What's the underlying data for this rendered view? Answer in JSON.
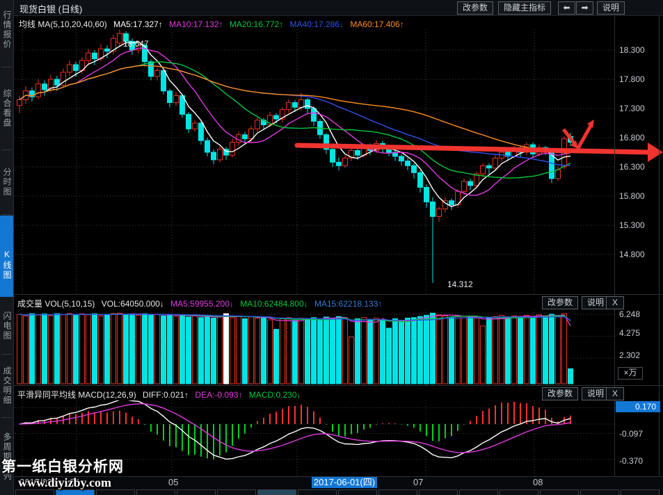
{
  "window": {
    "title": "现货白银 (日线)",
    "buttons": {
      "change_params": "改参数",
      "hide_indicator": "隐藏主指标",
      "prev": "⬅",
      "next": "➡",
      "help": "说明"
    }
  },
  "sidebar": {
    "items": [
      {
        "label": "行情报价",
        "active": false
      },
      {
        "label": "综合看盘",
        "active": false
      },
      {
        "label": "分时图",
        "active": false
      },
      {
        "label": "K线图",
        "active": true
      },
      {
        "label": "闪电图",
        "active": false
      },
      {
        "label": "成交明细",
        "active": false
      },
      {
        "label": "多周期同列",
        "active": false
      }
    ]
  },
  "ma_header": {
    "prefix": "均线 MA(5,10,20,40,60)",
    "values": [
      {
        "text": "MA5:17.327↑"
      },
      {
        "text": "MA10:17.132↑"
      },
      {
        "text": "MA20:16.772↑"
      },
      {
        "text": "MA40:17.286↓"
      },
      {
        "text": "MA60:17.406↑"
      }
    ]
  },
  "volume_pane": {
    "prefix": "成交量 VOL(5,10,15)",
    "vol_value": "VOL:64050.000↓",
    "ma_values": [
      {
        "text": "MA5:59955.200↓"
      },
      {
        "text": "MA10:62484.800↓"
      },
      {
        "text": "MA15:62218.133↑"
      }
    ],
    "buttons": {
      "change_params": "改参数",
      "help": "说明",
      "close": "X"
    },
    "unit": "×万"
  },
  "macd_pane": {
    "prefix": "平滑异同平均线 MACD(12,26,9)",
    "values": [
      {
        "text": "DIFF:0.021↑"
      },
      {
        "text": "DEA:-0.093↑"
      },
      {
        "text": "MACD:0.230↓"
      }
    ],
    "buttons": {
      "change_params": "改参数",
      "help": "说明",
      "close": "X"
    }
  },
  "time_axis": {
    "labels": [
      "2017/03",
      "04",
      "05",
      "07",
      "08"
    ],
    "highlight": "2017-06-01(四)"
  },
  "watermark": {
    "line1": "第一纸白银分析网",
    "line2": "www.diyizby.com"
  },
  "colors": {
    "up": "#ee3224",
    "down": "#00e4e4",
    "white_bar": "#ffffff",
    "ma5": "#ffffff",
    "ma10": "#e33ae3",
    "ma20": "#00c83c",
    "ma40": "#3050f0",
    "ma60": "#ff8c1e",
    "hist_pos": "#ff3030",
    "hist_neg": "#00d020",
    "accent": "#1377d4",
    "annotation": "#f23430",
    "grid": "#3a3f46"
  },
  "chart_data": {
    "type": "candlestick",
    "title": "现货白银 (日线)",
    "price_axis_labels": [
      "18.300",
      "17.800",
      "17.300",
      "16.800",
      "16.300",
      "15.800",
      "15.300",
      "14.800"
    ],
    "price_ylim": [
      14.25,
      18.66
    ],
    "peak_label": "18.647",
    "trough_label": "14.312",
    "ohlc": [
      [
        17.35,
        17.52,
        17.22,
        17.45
      ],
      [
        17.45,
        17.68,
        17.38,
        17.6
      ],
      [
        17.6,
        17.66,
        17.42,
        17.5
      ],
      [
        17.5,
        17.8,
        17.46,
        17.72
      ],
      [
        17.72,
        17.78,
        17.52,
        17.62
      ],
      [
        17.62,
        17.88,
        17.58,
        17.8
      ],
      [
        17.8,
        17.86,
        17.6,
        17.7
      ],
      [
        17.7,
        17.98,
        17.66,
        17.92
      ],
      [
        17.92,
        18.12,
        17.86,
        18.05
      ],
      [
        18.05,
        18.1,
        17.84,
        17.95
      ],
      [
        17.95,
        18.18,
        17.9,
        18.12
      ],
      [
        18.12,
        18.32,
        18.05,
        18.25
      ],
      [
        18.25,
        18.3,
        18.04,
        18.15
      ],
      [
        18.15,
        18.4,
        18.1,
        18.32
      ],
      [
        18.32,
        18.38,
        18.16,
        18.28
      ],
      [
        18.28,
        18.56,
        18.22,
        18.5
      ],
      [
        18.42,
        18.647,
        18.36,
        18.58
      ],
      [
        18.58,
        18.62,
        18.38,
        18.45
      ],
      [
        18.45,
        18.5,
        18.22,
        18.3
      ],
      [
        18.3,
        18.44,
        18.24,
        18.38
      ],
      [
        18.38,
        18.42,
        18.02,
        18.1
      ],
      [
        18.1,
        18.14,
        17.78,
        17.85
      ],
      [
        17.85,
        18.0,
        17.78,
        17.95
      ],
      [
        17.95,
        17.98,
        17.54,
        17.6
      ],
      [
        17.6,
        17.64,
        17.32,
        17.4
      ],
      [
        17.4,
        17.58,
        17.34,
        17.52
      ],
      [
        17.52,
        17.55,
        17.14,
        17.2
      ],
      [
        17.2,
        17.24,
        16.88,
        16.95
      ],
      [
        16.95,
        17.1,
        16.9,
        17.05
      ],
      [
        17.05,
        17.08,
        16.68,
        16.75
      ],
      [
        16.75,
        16.8,
        16.48,
        16.55
      ],
      [
        16.55,
        16.6,
        16.34,
        16.42
      ],
      [
        16.42,
        16.65,
        16.38,
        16.6
      ],
      [
        16.6,
        16.64,
        16.42,
        16.5
      ],
      [
        16.5,
        16.78,
        16.46,
        16.72
      ],
      [
        16.72,
        16.9,
        16.66,
        16.85
      ],
      [
        16.85,
        16.9,
        16.7,
        16.78
      ],
      [
        16.78,
        17.0,
        16.72,
        16.95
      ],
      [
        16.95,
        17.15,
        16.9,
        17.1
      ],
      [
        17.1,
        17.14,
        16.94,
        17.02
      ],
      [
        17.02,
        17.24,
        16.98,
        17.18
      ],
      [
        17.18,
        17.22,
        17.04,
        17.12
      ],
      [
        17.12,
        17.32,
        17.06,
        17.28
      ],
      [
        17.28,
        17.46,
        17.22,
        17.4
      ],
      [
        17.4,
        17.44,
        17.24,
        17.32
      ],
      [
        17.32,
        17.57,
        17.26,
        17.45
      ],
      [
        17.45,
        17.48,
        17.22,
        17.3
      ],
      [
        17.3,
        17.34,
        17.0,
        17.08
      ],
      [
        17.08,
        17.12,
        16.78,
        16.85
      ],
      [
        16.85,
        16.88,
        16.52,
        16.6
      ],
      [
        16.6,
        16.64,
        16.3,
        16.38
      ],
      [
        16.38,
        16.46,
        16.24,
        16.32
      ],
      [
        16.32,
        16.5,
        16.28,
        16.45
      ],
      [
        16.45,
        16.64,
        16.4,
        16.58
      ],
      [
        16.58,
        16.62,
        16.42,
        16.5
      ],
      [
        16.5,
        16.7,
        16.46,
        16.65
      ],
      [
        16.65,
        16.7,
        16.5,
        16.58
      ],
      [
        16.58,
        16.76,
        16.54,
        16.7
      ],
      [
        16.7,
        16.74,
        16.54,
        16.62
      ],
      [
        16.62,
        16.66,
        16.48,
        16.55
      ],
      [
        16.55,
        16.6,
        16.4,
        16.48
      ],
      [
        16.48,
        16.52,
        16.32,
        16.4
      ],
      [
        16.4,
        16.45,
        16.24,
        16.32
      ],
      [
        16.32,
        16.36,
        16.1,
        16.2
      ],
      [
        16.2,
        16.24,
        15.86,
        15.95
      ],
      [
        15.95,
        16.0,
        15.6,
        15.7
      ],
      [
        15.7,
        15.78,
        14.312,
        15.45
      ],
      [
        15.45,
        15.62,
        15.36,
        15.58
      ],
      [
        15.58,
        15.78,
        15.52,
        15.72
      ],
      [
        15.72,
        15.76,
        15.56,
        15.65
      ],
      [
        15.65,
        15.92,
        15.6,
        15.88
      ],
      [
        15.88,
        16.1,
        15.82,
        16.05
      ],
      [
        16.05,
        16.1,
        15.9,
        15.98
      ],
      [
        15.98,
        16.22,
        15.94,
        16.18
      ],
      [
        16.18,
        16.36,
        16.12,
        16.32
      ],
      [
        16.32,
        16.36,
        16.18,
        16.28
      ],
      [
        16.28,
        16.5,
        16.24,
        16.45
      ],
      [
        16.45,
        16.6,
        16.4,
        16.55
      ],
      [
        16.55,
        16.6,
        16.4,
        16.48
      ],
      [
        16.48,
        16.66,
        16.44,
        16.62
      ],
      [
        16.62,
        16.66,
        16.46,
        16.55
      ],
      [
        16.55,
        16.72,
        16.5,
        16.68
      ],
      [
        16.68,
        16.72,
        16.46,
        16.52
      ],
      [
        16.52,
        16.68,
        16.48,
        16.63
      ],
      [
        16.63,
        16.66,
        16.5,
        16.58
      ],
      [
        16.55,
        16.58,
        16.02,
        16.1
      ],
      [
        16.1,
        16.3,
        16.06,
        16.25
      ],
      [
        16.3,
        16.82,
        16.26,
        16.78
      ],
      [
        16.82,
        16.88,
        16.66,
        16.72
      ]
    ],
    "volume": {
      "values": [
        6.25,
        6.1,
        6.3,
        6.18,
        6.28,
        6.12,
        6.3,
        6.22,
        6.32,
        6.15,
        6.28,
        6.2,
        6.3,
        6.1,
        6.25,
        6.32,
        6.35,
        6.22,
        6.28,
        6.15,
        6.3,
        6.18,
        6.25,
        6.1,
        6.22,
        6.05,
        6.18,
        6.0,
        6.12,
        5.95,
        6.05,
        5.9,
        6.0,
        6.3,
        5.95,
        6.1,
        5.85,
        6.05,
        5.9,
        6.0,
        5.75,
        4.9,
        5.85,
        5.95,
        5.7,
        5.9,
        5.8,
        5.95,
        5.85,
        6.0,
        5.9,
        6.05,
        5.95,
        4.2,
        5.85,
        5.95,
        5.8,
        5.9,
        5.75,
        5.0,
        5.85,
        5.7,
        5.9,
        5.95,
        6.05,
        6.15,
        6.35,
        6.2,
        6.1,
        6.0,
        6.1,
        5.95,
        6.05,
        5.9,
        5.2,
        5.95,
        6.05,
        6.15,
        5.95,
        6.1,
        6.0,
        6.15,
        6.05,
        6.2,
        6.1,
        6.25,
        6.05,
        6.3,
        1.35
      ],
      "axis_labels": [
        "6.248",
        "4.275",
        "2.302"
      ],
      "white_bar_index": 33
    },
    "macd_axis": {
      "current": "0.170",
      "labels": [
        "-0.097",
        "-0.370"
      ]
    },
    "grid": true,
    "legend_position": "top"
  }
}
